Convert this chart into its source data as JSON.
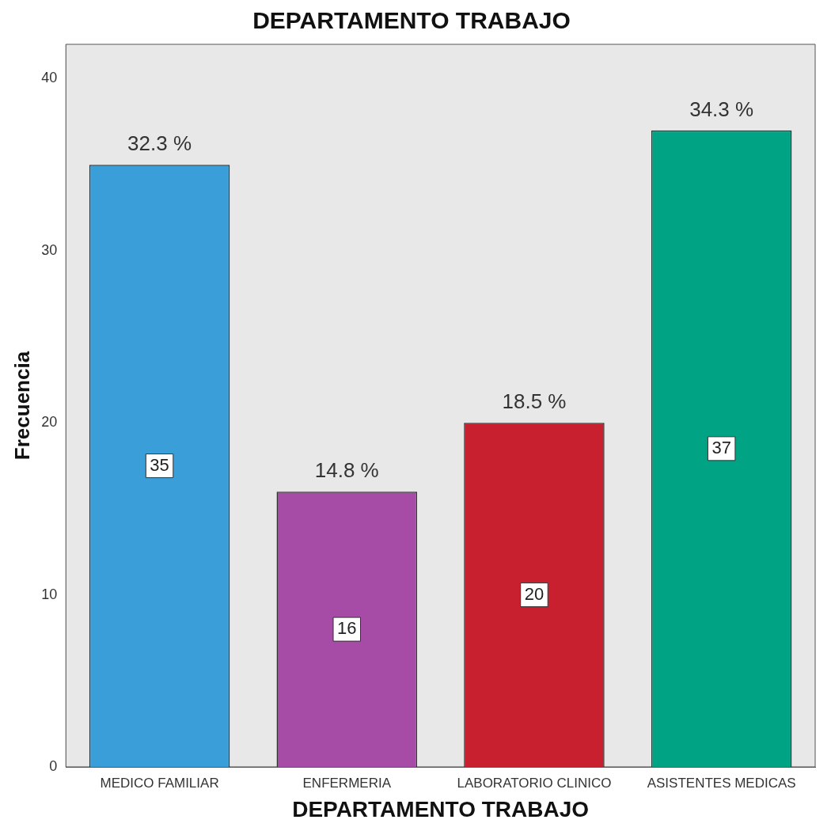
{
  "chart_data": {
    "type": "bar",
    "title": "DEPARTAMENTO TRABAJO",
    "xlabel": "DEPARTAMENTO TRABAJO",
    "ylabel": "Frecuencia",
    "categories": [
      "MEDICO FAMILIAR",
      "ENFERMERIA",
      "LABORATORIO CLINICO",
      "ASISTENTES MEDICAS"
    ],
    "values": [
      35,
      16,
      20,
      37
    ],
    "colors": [
      "#3a9fd8",
      "#a64ca6",
      "#c8202e",
      "#00a383"
    ],
    "ylim": [
      0,
      42
    ],
    "yticks": [
      0,
      10,
      20,
      30,
      40
    ],
    "grid": false,
    "legend": false,
    "data_labels": true,
    "annotations": [
      {
        "text": "32.3 %",
        "x": "MEDICO FAMILIAR",
        "y": 35
      },
      {
        "text": "14.8 %",
        "x": "ENFERMERIA",
        "y": 16
      },
      {
        "text": "18.5 %",
        "x": "LABORATORIO CLINICO",
        "y": 20
      },
      {
        "text": "34.3 %",
        "x": "ASISTENTES MEDICAS",
        "y": 37
      }
    ]
  }
}
